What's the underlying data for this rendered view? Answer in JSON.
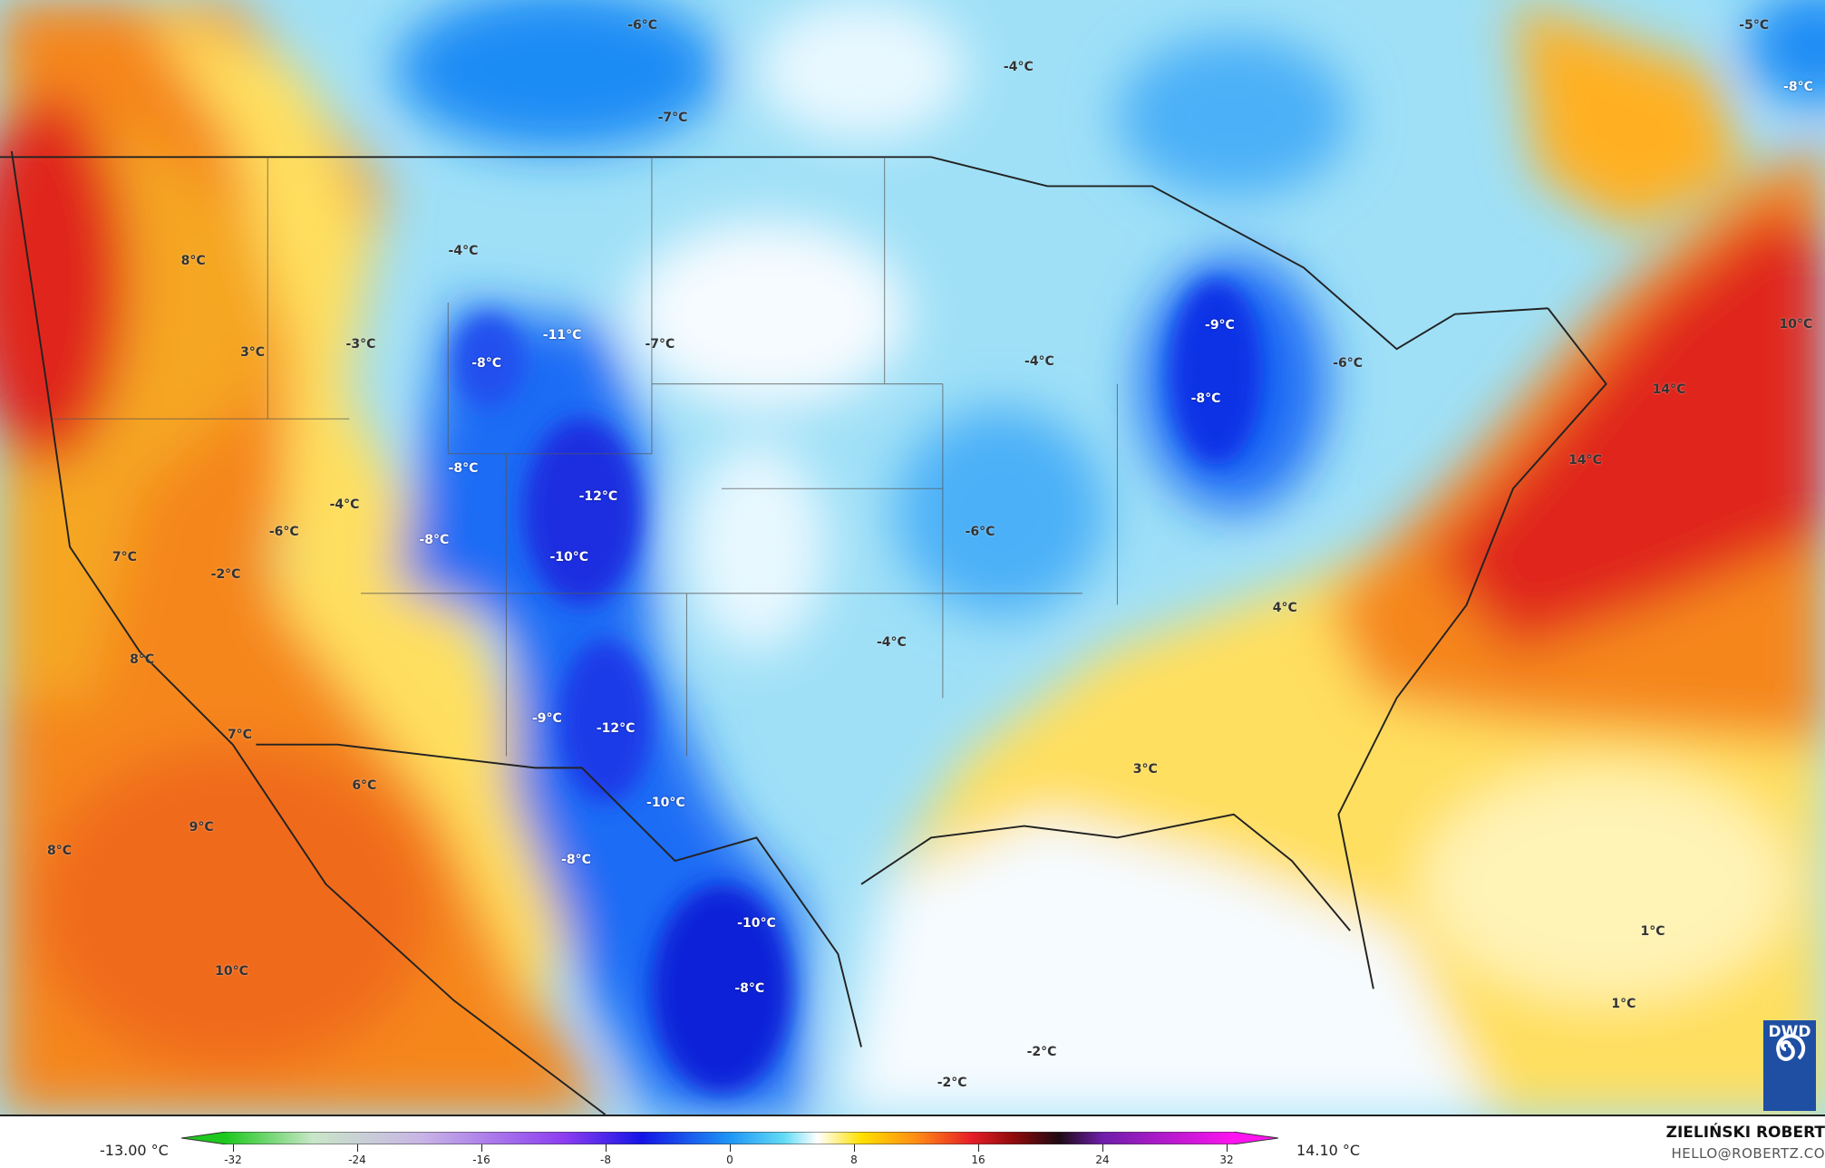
{
  "map": {
    "labels": [
      "-6°C",
      "-7°C",
      "-4°C",
      "-5°C",
      "-8°C",
      "-4°C",
      "8°C",
      "3°C",
      "-3°C",
      "-8°C",
      "-11°C",
      "-7°C",
      "-9°C",
      "-6°C",
      "-4°C",
      "-8°C",
      "10°C",
      "14°C",
      "14°C",
      "-8°C",
      "-12°C",
      "-4°C",
      "-6°C",
      "-8°C",
      "-6°C",
      "-10°C",
      "7°C",
      "-2°C",
      "4°C",
      "-4°C",
      "8°C",
      "-9°C",
      "-12°C",
      "7°C",
      "6°C",
      "-10°C",
      "3°C",
      "9°C",
      "8°C",
      "-8°C",
      "-10°C",
      "1°C",
      "10°C",
      "-8°C",
      "1°C",
      "-2°C",
      "-2°C"
    ],
    "colors": {
      "warm_red": "#e0261c",
      "orange": "#f5861f",
      "yellow": "#ffdf5e",
      "pale_yellow": "#fff3b5",
      "light_blue": "#9fe0f7",
      "blue": "#1a8cf5",
      "deep_blue": "#1030e6",
      "white": "#f6fbff"
    }
  },
  "logo": {
    "text": "DWD"
  },
  "footer": {
    "min_value": "-13.00 °C",
    "max_value": "14.10 °C",
    "colorbar_ticks": [
      "-32",
      "-24",
      "-16",
      "-8",
      "0",
      "8",
      "16",
      "24",
      "32"
    ],
    "author": "ZIELIŃSKI ROBERT",
    "email": "HELLO@ROBERTZ.CO"
  }
}
